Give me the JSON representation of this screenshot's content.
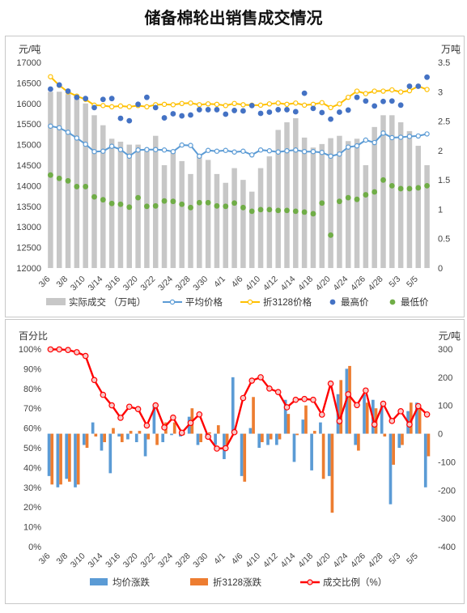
{
  "title": "储备棉轮出销售成交情况",
  "chart_data": [
    {
      "type": "bar+line",
      "x": [
        "3/6",
        "3/7",
        "3/8",
        "3/9",
        "3/10",
        "3/13",
        "3/14",
        "3/15",
        "3/16",
        "3/17",
        "3/20",
        "3/21",
        "3/22",
        "3/23",
        "3/24",
        "3/27",
        "3/28",
        "3/29",
        "3/30",
        "3/31",
        "4/1",
        "4/3",
        "4/6",
        "4/7",
        "4/10",
        "4/11",
        "4/12",
        "4/13",
        "4/14",
        "4/17",
        "4/18",
        "4/19",
        "4/20",
        "4/21",
        "4/24",
        "4/25",
        "4/26",
        "4/27",
        "4/28",
        "5/2",
        "5/3",
        "5/4",
        "5/5",
        "5/8"
      ],
      "x_tick_labels": [
        "3/6",
        "3/8",
        "3/10",
        "3/14",
        "3/16",
        "3/20",
        "3/22",
        "3/24",
        "3/28",
        "3/30",
        "4/1",
        "4/6",
        "4/10",
        "4/12",
        "4/14",
        "4/18",
        "4/20",
        "4/24",
        "4/26",
        "4/28",
        "5/3",
        "5/5"
      ],
      "yleft_label": "元/吨",
      "yright_label": "万吨",
      "yleft_lim": [
        12000,
        17000
      ],
      "yleft_ticks": [
        12000,
        12500,
        13000,
        13500,
        14000,
        14500,
        15000,
        15500,
        16000,
        16500,
        17000
      ],
      "yright_lim": [
        0,
        3.5
      ],
      "yright_ticks": [
        "0",
        "0.5",
        "1",
        "1.5",
        "2",
        "2.5",
        "3",
        "3.5"
      ],
      "legend": [
        "实际成交 （万吨）",
        "平均价格",
        "折3128价格",
        "最高价",
        "最低价"
      ],
      "colors": {
        "bar": "#c7c7c7",
        "avg": "#5b9bd5",
        "zhe": "#ffc000",
        "high": "#4472c4",
        "low": "#70ad47"
      },
      "series": [
        {
          "name": "实际成交 （万吨）",
          "axis": "right",
          "values": [
            3.0,
            3.0,
            2.96,
            2.88,
            2.8,
            2.6,
            2.43,
            2.2,
            2.15,
            2.1,
            2.1,
            2.0,
            2.25,
            1.75,
            2.0,
            1.82,
            1.6,
            1.9,
            1.84,
            1.6,
            1.45,
            1.7,
            1.5,
            1.3,
            1.7,
            1.9,
            2.35,
            2.48,
            2.55,
            2.22,
            2.05,
            2.11,
            2.21,
            2.25,
            2.16,
            2.2,
            1.75,
            2.4,
            2.6,
            2.6,
            2.48,
            2.33,
            2.08,
            1.75
          ]
        },
        {
          "name": "平均价格",
          "axis": "left",
          "values": [
            15450,
            15410,
            15300,
            15160,
            15010,
            14830,
            14840,
            14960,
            14880,
            14720,
            14870,
            14880,
            14880,
            14870,
            14830,
            14990,
            14980,
            14720,
            14860,
            14840,
            14860,
            14820,
            14840,
            14750,
            14870,
            14850,
            14820,
            14850,
            14870,
            14830,
            14830,
            14810,
            14720,
            14770,
            14940,
            14970,
            15110,
            15050,
            15280,
            15170,
            15180,
            15200,
            15210,
            15260
          ]
        },
        {
          "name": "折3128价格",
          "axis": "left",
          "values": [
            16650,
            16440,
            16280,
            16180,
            16100,
            15960,
            15950,
            15920,
            15940,
            15920,
            15950,
            15920,
            15970,
            15980,
            15970,
            16000,
            16010,
            15970,
            15990,
            15980,
            15950,
            16000,
            15970,
            15960,
            15960,
            15990,
            16010,
            15980,
            16010,
            15960,
            15980,
            16020,
            15900,
            15990,
            16150,
            16300,
            16240,
            16300,
            16300,
            16330,
            16280,
            16310,
            16420,
            16340
          ]
        },
        {
          "name": "最高价",
          "axis": "left",
          "values": [
            16350,
            16450,
            16300,
            16150,
            16120,
            15900,
            16100,
            16120,
            15640,
            15580,
            15980,
            16150,
            15900,
            15650,
            15750,
            15700,
            15720,
            15850,
            15850,
            15850,
            15740,
            15830,
            15820,
            15950,
            15760,
            15790,
            15850,
            15850,
            15800,
            16250,
            15880,
            15780,
            15620,
            15790,
            15840,
            16150,
            16060,
            15940,
            16050,
            16060,
            15960,
            16420,
            16420,
            16640
          ]
        },
        {
          "name": "最低价",
          "axis": "left",
          "values": [
            14260,
            14180,
            14120,
            13980,
            13980,
            13730,
            13660,
            13570,
            13550,
            13480,
            13710,
            13500,
            13510,
            13630,
            13620,
            13550,
            13470,
            13590,
            13590,
            13510,
            13500,
            13580,
            13470,
            13380,
            13420,
            13420,
            13400,
            13400,
            13380,
            13360,
            13320,
            13580,
            12800,
            13620,
            13710,
            13670,
            13780,
            13850,
            14140,
            14000,
            13930,
            13930,
            13950,
            14000
          ]
        }
      ]
    },
    {
      "type": "bar+line",
      "x": [
        "3/6",
        "3/7",
        "3/8",
        "3/9",
        "3/10",
        "3/13",
        "3/14",
        "3/15",
        "3/16",
        "3/17",
        "3/20",
        "3/21",
        "3/22",
        "3/23",
        "3/24",
        "3/27",
        "3/28",
        "3/29",
        "3/30",
        "3/31",
        "4/1",
        "4/3",
        "4/6",
        "4/7",
        "4/10",
        "4/11",
        "4/12",
        "4/13",
        "4/14",
        "4/17",
        "4/18",
        "4/19",
        "4/20",
        "4/21",
        "4/24",
        "4/25",
        "4/26",
        "4/27",
        "4/28",
        "5/2",
        "5/3",
        "5/4",
        "5/5",
        "5/8"
      ],
      "x_tick_labels": [
        "3/6",
        "3/8",
        "3/10",
        "3/14",
        "3/16",
        "3/20",
        "3/22",
        "3/24",
        "3/28",
        "3/30",
        "4/1",
        "4/6",
        "4/10",
        "4/12",
        "4/14",
        "4/18",
        "4/20",
        "4/24",
        "4/26",
        "4/28",
        "5/3",
        "5/5"
      ],
      "yleft_label": "百分比",
      "yright_label": "元/吨",
      "yleft_lim": [
        0,
        100
      ],
      "yleft_ticks": [
        "0%",
        "10%",
        "20%",
        "30%",
        "40%",
        "50%",
        "60%",
        "70%",
        "80%",
        "90%",
        "100%"
      ],
      "yright_lim": [
        -400,
        300
      ],
      "yright_ticks": [
        "-400",
        "-300",
        "-200",
        "-100",
        "0",
        "100",
        "200",
        "300"
      ],
      "legend": [
        "均价涨跌",
        "折3128涨跌",
        "成交比例（%）"
      ],
      "colors": {
        "avg": "#5b9bd5",
        "zhe": "#ed7d31",
        "ratio": "#ff0000"
      },
      "series": [
        {
          "name": "均价涨跌",
          "axis": "right",
          "values": [
            -150,
            -190,
            -160,
            -190,
            -40,
            40,
            -60,
            -140,
            -10,
            -20,
            -30,
            -80,
            100,
            -30,
            -5,
            -10,
            60,
            -40,
            -5,
            -40,
            -90,
            200,
            -150,
            20,
            -50,
            -40,
            -40,
            120,
            -100,
            50,
            -130,
            40,
            -150,
            140,
            230,
            -40,
            140,
            120,
            100,
            -250,
            -50,
            80,
            110,
            -190
          ]
        },
        {
          "name": "折3128涨跌",
          "axis": "right",
          "values": [
            -180,
            -180,
            -170,
            -180,
            -50,
            -10,
            -30,
            20,
            -30,
            10,
            10,
            -20,
            -40,
            40,
            40,
            -5,
            90,
            -30,
            5,
            30,
            -40,
            10,
            -170,
            130,
            -30,
            -20,
            -20,
            70,
            -5,
            100,
            10,
            -160,
            -280,
            190,
            240,
            -60,
            110,
            90,
            -10,
            -110,
            -40,
            110,
            90,
            -80
          ]
        },
        {
          "name": "成交比例（%）",
          "axis": "left",
          "values": [
            99.8,
            99.8,
            99.5,
            98.4,
            96.5,
            84.3,
            76.8,
            71.5,
            65.2,
            70.8,
            69.6,
            61.3,
            71.5,
            60.3,
            65.3,
            57.6,
            62.6,
            66.9,
            55.6,
            49.6,
            49.8,
            57.9,
            75.2,
            84.0,
            85.7,
            80.0,
            78.2,
            70.5,
            74.3,
            74.7,
            74.3,
            66.8,
            82.5,
            63.5,
            77.1,
            71.6,
            79.0,
            61.8,
            72.3,
            63.6,
            68.5,
            61.8,
            71.1,
            66.9
          ]
        }
      ]
    }
  ]
}
